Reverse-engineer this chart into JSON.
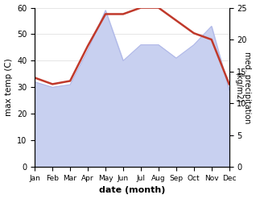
{
  "months": [
    "Jan",
    "Feb",
    "Mar",
    "Apr",
    "May",
    "Jun",
    "Jul",
    "Aug",
    "Sep",
    "Oct",
    "Nov",
    "Dec"
  ],
  "month_indices": [
    0,
    1,
    2,
    3,
    4,
    5,
    6,
    7,
    8,
    9,
    10,
    11
  ],
  "temperature": [
    32,
    30,
    31,
    44,
    59,
    40,
    46,
    46,
    41,
    46,
    53,
    29
  ],
  "precipitation": [
    14,
    13,
    13.5,
    19,
    24,
    24,
    25,
    25,
    23,
    21,
    20,
    13
  ],
  "temp_color": "#b0b8e8",
  "temp_fill_color": "#c8d0f0",
  "precip_line_color": "#c0392b",
  "temp_ylim": [
    0,
    60
  ],
  "precip_ylim": [
    0,
    25
  ],
  "temp_yticks": [
    0,
    10,
    20,
    30,
    40,
    50,
    60
  ],
  "precip_yticks": [
    0,
    5,
    10,
    15,
    20,
    25
  ],
  "ylabel_left": "max temp (C)",
  "ylabel_right": "med. precipitation\n(kg/m2)",
  "xlabel": "date (month)",
  "ylabel_right_rotation": 270,
  "figsize": [
    3.18,
    2.47
  ],
  "dpi": 100
}
